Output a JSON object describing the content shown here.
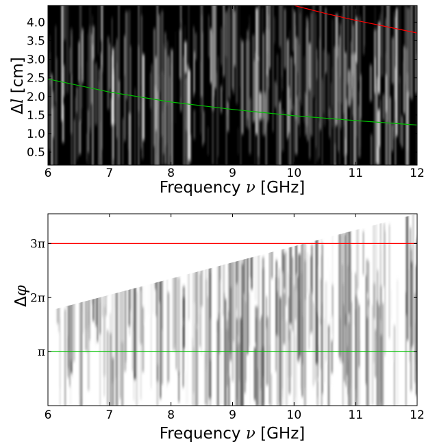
{
  "chart_data": [
    {
      "type": "heatmap",
      "title": "",
      "xlabel_parts": [
        "Frequency ",
        "ν",
        " [GHz]"
      ],
      "ylabel_parts": [
        "Δ",
        "l",
        " [cm]"
      ],
      "xlim": [
        6,
        12
      ],
      "ylim": [
        0.15,
        4.45
      ],
      "x_ticks": [
        6,
        7,
        8,
        9,
        10,
        11,
        12
      ],
      "x_tick_labels": [
        "6",
        "7",
        "8",
        "9",
        "10",
        "11",
        "12"
      ],
      "y_ticks": [
        0.5,
        1.0,
        1.5,
        2.0,
        2.5,
        3.0,
        3.5,
        4.0
      ],
      "y_tick_labels": [
        "0.5",
        "1.0",
        "1.5",
        "2.0",
        "2.5",
        "3.0",
        "3.5",
        "4.0"
      ],
      "colormap": "gray",
      "lines": [
        {
          "color": "#00c000",
          "x": [
            6,
            7,
            8,
            9,
            10,
            11,
            12
          ],
          "y": [
            2.47,
            2.12,
            1.85,
            1.65,
            1.48,
            1.35,
            1.23
          ]
        },
        {
          "color": "#ff0000",
          "x": [
            10,
            10.5,
            11,
            11.5,
            12
          ],
          "y": [
            4.45,
            4.24,
            4.05,
            3.88,
            3.71
          ]
        }
      ]
    },
    {
      "type": "heatmap",
      "title": "",
      "xlabel_parts": [
        "Frequency ",
        "ν",
        " [GHz]"
      ],
      "ylabel_parts": [
        "Δ",
        "φ",
        ""
      ],
      "xlim": [
        6,
        12
      ],
      "ylim": [
        0.0,
        3.55
      ],
      "x_ticks": [
        6,
        7,
        8,
        9,
        10,
        11,
        12
      ],
      "x_tick_labels": [
        "6",
        "7",
        "8",
        "9",
        "10",
        "11",
        "12"
      ],
      "y_ticks": [
        1,
        2,
        3
      ],
      "y_tick_labels": [
        "π",
        "2π",
        "3π"
      ],
      "y_unit": "π",
      "colormap": "gray",
      "data_upper_boundary": {
        "x": [
          6,
          12
        ],
        "y": [
          1.75,
          3.55
        ]
      },
      "lines": [
        {
          "color": "#00c000",
          "x": [
            6,
            12
          ],
          "y": [
            1,
            1
          ]
        },
        {
          "color": "#ff0000",
          "x": [
            6,
            12
          ],
          "y": [
            3,
            3
          ]
        }
      ]
    }
  ]
}
